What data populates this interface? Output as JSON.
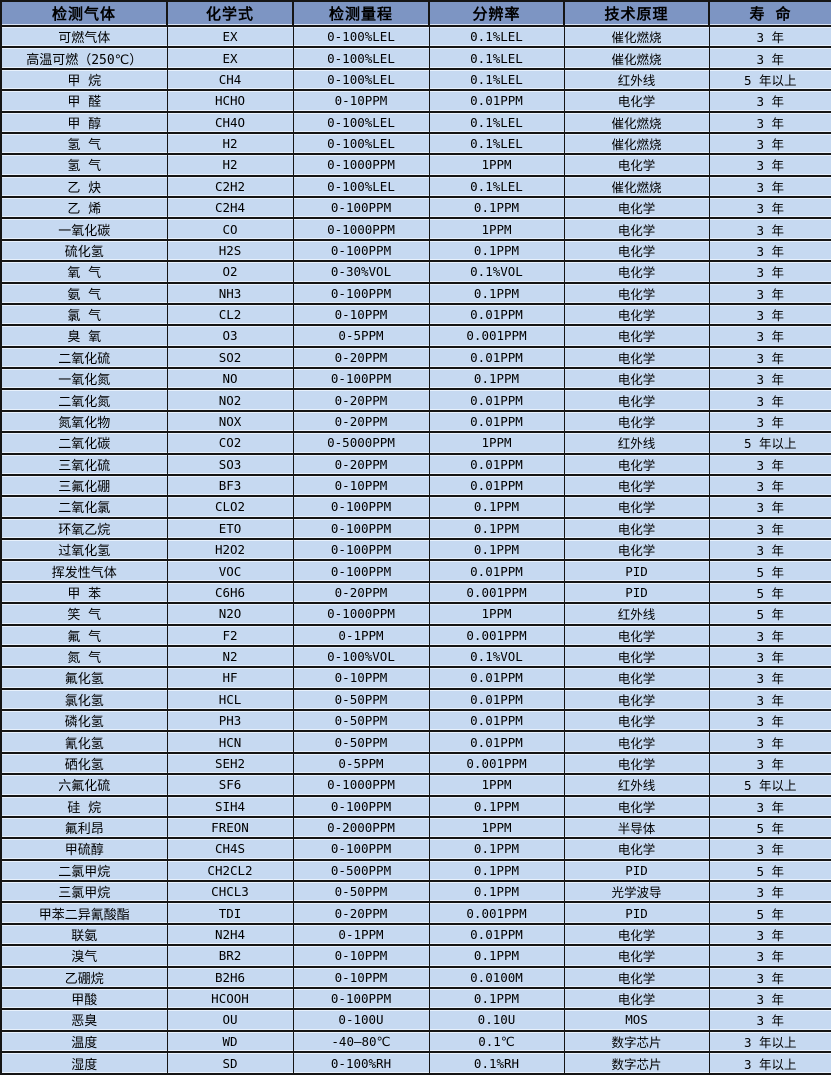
{
  "colors": {
    "header_bg": "#7d95c3",
    "row_bg": "#c6d9f1",
    "border": "#151515"
  },
  "table": {
    "columns": [
      "检测气体",
      "化学式",
      "检测量程",
      "分辨率",
      "技术原理",
      "寿 命"
    ],
    "rows": [
      [
        "可燃气体",
        "EX",
        "0-100%LEL",
        "0.1%LEL",
        "催化燃烧",
        "3 年"
      ],
      [
        "高温可燃（250℃）",
        "EX",
        "0-100%LEL",
        "0.1%LEL",
        "催化燃烧",
        "3 年"
      ],
      [
        "甲 烷",
        "CH4",
        "0-100%LEL",
        "0.1%LEL",
        "红外线",
        "5 年以上"
      ],
      [
        "甲 醛",
        "HCHO",
        "0-10PPM",
        "0.01PPM",
        "电化学",
        "3 年"
      ],
      [
        "甲 醇",
        "CH4O",
        "0-100%LEL",
        "0.1%LEL",
        "催化燃烧",
        "3 年"
      ],
      [
        "氢 气",
        "H2",
        "0-100%LEL",
        "0.1%LEL",
        "催化燃烧",
        "3 年"
      ],
      [
        "氢 气",
        "H2",
        "0-1000PPM",
        "1PPM",
        "电化学",
        "3 年"
      ],
      [
        "乙 炔",
        "C2H2",
        "0-100%LEL",
        "0.1%LEL",
        "催化燃烧",
        "3 年"
      ],
      [
        "乙 烯",
        "C2H4",
        "0-100PPM",
        "0.1PPM",
        "电化学",
        "3 年"
      ],
      [
        "一氧化碳",
        "CO",
        "0-1000PPM",
        "1PPM",
        "电化学",
        "3 年"
      ],
      [
        "硫化氢",
        "H2S",
        "0-100PPM",
        "0.1PPM",
        "电化学",
        "3 年"
      ],
      [
        "氧 气",
        "O2",
        "0-30%VOL",
        "0.1%VOL",
        "电化学",
        "3 年"
      ],
      [
        "氨 气",
        "NH3",
        "0-100PPM",
        "0.1PPM",
        "电化学",
        "3 年"
      ],
      [
        "氯 气",
        "CL2",
        "0-10PPM",
        "0.01PPM",
        "电化学",
        "3 年"
      ],
      [
        "臭 氧",
        "O3",
        "0-5PPM",
        "0.001PPM",
        "电化学",
        "3 年"
      ],
      [
        "二氧化硫",
        "SO2",
        "0-20PPM",
        "0.01PPM",
        "电化学",
        "3 年"
      ],
      [
        "一氧化氮",
        "NO",
        "0-100PPM",
        "0.1PPM",
        "电化学",
        "3 年"
      ],
      [
        "二氧化氮",
        "NO2",
        "0-20PPM",
        "0.01PPM",
        "电化学",
        "3 年"
      ],
      [
        "氮氧化物",
        "NOX",
        "0-20PPM",
        "0.01PPM",
        "电化学",
        "3 年"
      ],
      [
        "二氧化碳",
        "CO2",
        "0-5000PPM",
        "1PPM",
        "红外线",
        "5 年以上"
      ],
      [
        "三氧化硫",
        "SO3",
        "0-20PPM",
        "0.01PPM",
        "电化学",
        "3 年"
      ],
      [
        "三氟化硼",
        "BF3",
        "0-10PPM",
        "0.01PPM",
        "电化学",
        "3 年"
      ],
      [
        "二氧化氯",
        "CLO2",
        "0-100PPM",
        "0.1PPM",
        "电化学",
        "3 年"
      ],
      [
        "环氧乙烷",
        "ETO",
        "0-100PPM",
        "0.1PPM",
        "电化学",
        "3 年"
      ],
      [
        "过氧化氢",
        "H2O2",
        "0-100PPM",
        "0.1PPM",
        "电化学",
        "3 年"
      ],
      [
        "挥发性气体",
        "VOC",
        "0-100PPM",
        "0.01PPM",
        "PID",
        "5 年"
      ],
      [
        "甲 苯",
        "C6H6",
        "0-20PPM",
        "0.001PPM",
        "PID",
        "5 年"
      ],
      [
        "笑 气",
        "N2O",
        "0-1000PPM",
        "1PPM",
        "红外线",
        "5 年"
      ],
      [
        "氟 气",
        "F2",
        "0-1PPM",
        "0.001PPM",
        "电化学",
        "3 年"
      ],
      [
        "氮 气",
        "N2",
        "0-100%VOL",
        "0.1%VOL",
        "电化学",
        "3 年"
      ],
      [
        "氟化氢",
        "HF",
        "0-10PPM",
        "0.01PPM",
        "电化学",
        "3 年"
      ],
      [
        "氯化氢",
        "HCL",
        "0-50PPM",
        "0.01PPM",
        "电化学",
        "3 年"
      ],
      [
        "磷化氢",
        "PH3",
        "0-50PPM",
        "0.01PPM",
        "电化学",
        "3 年"
      ],
      [
        "氰化氢",
        "HCN",
        "0-50PPM",
        "0.01PPM",
        "电化学",
        "3 年"
      ],
      [
        "硒化氢",
        "SEH2",
        "0-5PPM",
        "0.001PPM",
        "电化学",
        "3 年"
      ],
      [
        "六氟化硫",
        "SF6",
        "0-1000PPM",
        "1PPM",
        "红外线",
        "5 年以上"
      ],
      [
        "硅 烷",
        "SIH4",
        "0-100PPM",
        "0.1PPM",
        "电化学",
        "3 年"
      ],
      [
        "氟利昂",
        "FREON",
        "0-2000PPM",
        "1PPM",
        "半导体",
        "5 年"
      ],
      [
        "甲硫醇",
        "CH4S",
        "0-100PPM",
        "0.1PPM",
        "电化学",
        "3 年"
      ],
      [
        "二氯甲烷",
        "CH2CL2",
        "0-500PPM",
        "0.1PPM",
        "PID",
        "5 年"
      ],
      [
        "三氯甲烷",
        "CHCL3",
        "0-50PPM",
        "0.1PPM",
        "光学波导",
        "3 年"
      ],
      [
        "甲苯二异氰酸酯",
        "TDI",
        "0-20PPM",
        "0.001PPM",
        "PID",
        "5 年"
      ],
      [
        "联氨",
        "N2H4",
        "0-1PPM",
        "0.01PPM",
        "电化学",
        "3 年"
      ],
      [
        "溴气",
        "BR2",
        "0-10PPM",
        "0.1PPM",
        "电化学",
        "3 年"
      ],
      [
        "乙硼烷",
        "B2H6",
        "0-10PPM",
        "0.0100M",
        "电化学",
        "3 年"
      ],
      [
        "甲酸",
        "HCOOH",
        "0-100PPM",
        "0.1PPM",
        "电化学",
        "3 年"
      ],
      [
        "恶臭",
        "OU",
        "0-100U",
        "0.10U",
        "MOS",
        "3 年"
      ],
      [
        "温度",
        "WD",
        "-40—80℃",
        "0.1℃",
        "数字芯片",
        "3 年以上"
      ],
      [
        "湿度",
        "SD",
        "0-100%RH",
        "0.1%RH",
        "数字芯片",
        "3 年以上"
      ]
    ]
  }
}
